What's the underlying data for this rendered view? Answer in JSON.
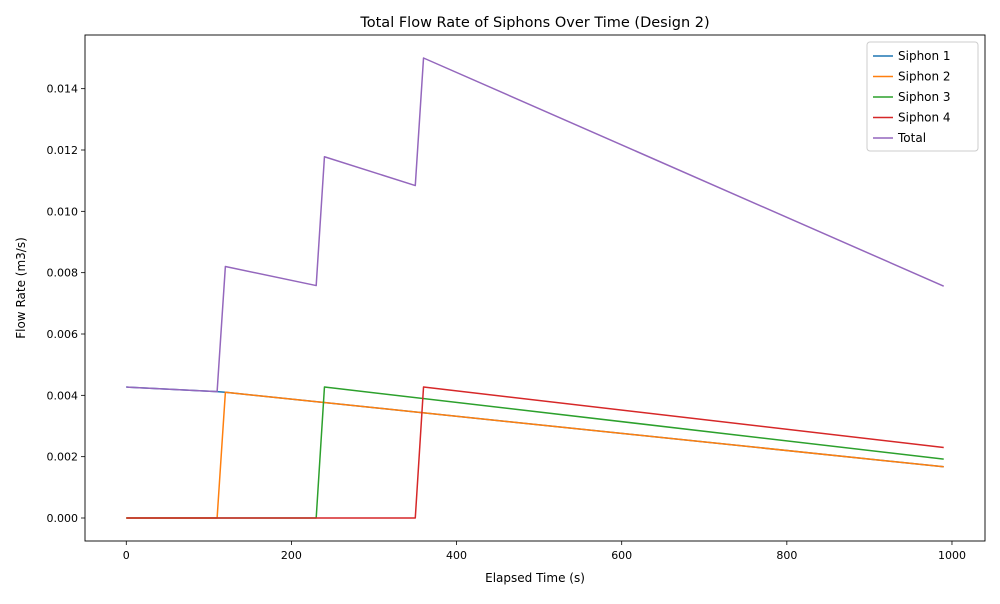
{
  "chart_data": {
    "type": "line",
    "title": "Total Flow Rate of Siphons Over Time (Design 2)",
    "xlabel": "Elapsed Time (s)",
    "ylabel": "Flow Rate (m3/s)",
    "xlim": [
      -50,
      1040
    ],
    "ylim": [
      -0.00075,
      0.01575
    ],
    "xticks": [
      0,
      200,
      400,
      600,
      800,
      1000
    ],
    "xtick_labels": [
      "0",
      "200",
      "400",
      "600",
      "800",
      "1000"
    ],
    "yticks": [
      0,
      0.002,
      0.004,
      0.006,
      0.008,
      0.01,
      0.012,
      0.014
    ],
    "ytick_labels": [
      "0.000",
      "0.002",
      "0.004",
      "0.006",
      "0.008",
      "0.010",
      "0.012",
      "0.014"
    ],
    "grid": false,
    "legend_position": "top-right",
    "series": [
      {
        "name": "Siphon 1",
        "color": "#1f77b4",
        "points": [
          [
            0,
            0.00427
          ],
          [
            110,
            0.00412
          ],
          [
            120,
            0.0041
          ],
          [
            990,
            0.00167
          ]
        ]
      },
      {
        "name": "Siphon 2",
        "color": "#ff7f0e",
        "points": [
          [
            0,
            0.0
          ],
          [
            110,
            0.0
          ],
          [
            120,
            0.0041
          ],
          [
            990,
            0.00167
          ]
        ]
      },
      {
        "name": "Siphon 3",
        "color": "#2ca02c",
        "points": [
          [
            0,
            0.0
          ],
          [
            230,
            0.0
          ],
          [
            240,
            0.00427
          ],
          [
            990,
            0.00192
          ]
        ]
      },
      {
        "name": "Siphon 4",
        "color": "#d62728",
        "points": [
          [
            0,
            0.0
          ],
          [
            350,
            0.0
          ],
          [
            360,
            0.00427
          ],
          [
            990,
            0.0023
          ]
        ]
      },
      {
        "name": "Total",
        "color": "#9467bd",
        "points": [
          [
            0,
            0.00427
          ],
          [
            110,
            0.00412
          ],
          [
            120,
            0.0082
          ],
          [
            230,
            0.00758
          ],
          [
            240,
            0.01178
          ],
          [
            350,
            0.01084
          ],
          [
            360,
            0.015
          ],
          [
            990,
            0.00756
          ]
        ]
      }
    ]
  }
}
